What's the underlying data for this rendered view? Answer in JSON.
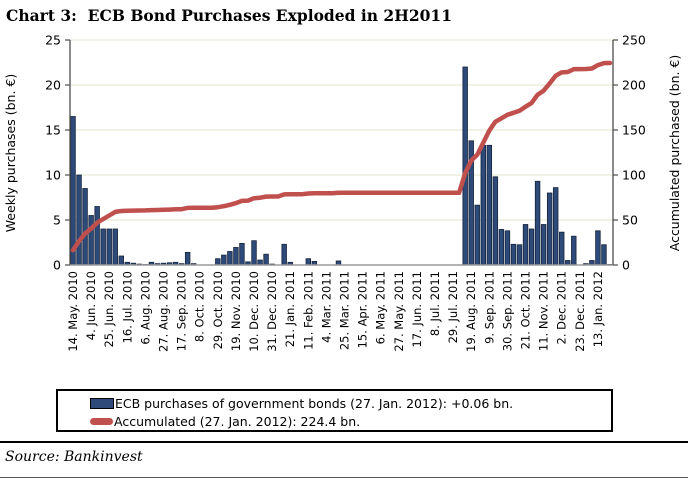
{
  "title": "Chart 3:  ECB Bond Purchases Exploded in 2H2011",
  "source_note": "Source: Bankinvest",
  "legend": {
    "bars_label": "ECB purchases of government bonds (27. Jan. 2012): +0.06 bn.",
    "line_label": "Accumulated (27. Jan. 2012): 224.4 bn."
  },
  "left_axis": {
    "title": "Weekly purchases (bn. €)",
    "min": 0,
    "max": 25,
    "ticks": [
      0,
      5,
      10,
      15,
      20,
      25
    ]
  },
  "right_axis": {
    "title": "Accumulated purchased (bn. €)",
    "min": 0,
    "max": 250,
    "ticks": [
      0,
      50,
      100,
      150,
      200,
      250
    ]
  },
  "colors": {
    "bar_fill": "#2E4A79",
    "bar_stroke": "#16243D",
    "line": "#C0504D",
    "grid": "#E2E4CB",
    "axis": "#4D4D4D",
    "baseline": "#9A9A9A"
  },
  "chart_data": {
    "type": "bar",
    "combo": "weekly bars on left axis + accumulated line on right axis",
    "grid": true,
    "legend_position": "bottom box",
    "x_unit": "weeks (14. May. 2010 – 27. Jan. 2012), every 3rd week labeled",
    "x_label_step": 3,
    "x_labels": [
      "14. May. 2010",
      "4. Jun. 2010",
      "25. Jun. 2010",
      "16. Jul. 2010",
      "6. Aug. 2010",
      "27. Aug. 2010",
      "17. Sep. 2010",
      "8. Oct. 2010",
      "29. Oct. 2010",
      "19. Nov. 2010",
      "10. Dec. 2010",
      "31. Dec. 2010",
      "21. Jan. 2011",
      "11. Feb. 2011",
      "4. Mar. 2011",
      "25. Mar. 2011",
      "15. Apr. 2011",
      "6. May. 2011",
      "27. May. 2011",
      "17. Jun. 2011",
      "8. Jul. 2011",
      "29. Jul. 2011",
      "19. Aug. 2011",
      "9. Sep. 2011",
      "30. Sep. 2011",
      "21. Oct. 2011",
      "11. Nov. 2011",
      "2. Dec. 2011",
      "23. Dec. 2011",
      "13. Jan. 2012"
    ],
    "series": [
      {
        "name": "ECB purchases of government bonds (27. Jan. 2012): +0.06 bn.",
        "type": "bar",
        "axis": "left",
        "ylim": [
          0,
          25
        ],
        "values": [
          16.5,
          10.0,
          8.5,
          5.5,
          6.5,
          4.0,
          4.0,
          4.0,
          1.0,
          0.3,
          0.2,
          0.1,
          0.05,
          0.3,
          0.15,
          0.2,
          0.25,
          0.3,
          0.15,
          1.4,
          0.15,
          0,
          0,
          0,
          0.7,
          1.1,
          1.5,
          1.95,
          2.4,
          0.35,
          2.7,
          0.55,
          1.2,
          0.1,
          0,
          2.3,
          0.3,
          0,
          0,
          0.7,
          0.4,
          0,
          0,
          0,
          0.45,
          0,
          0,
          0,
          0,
          0,
          0,
          0,
          0,
          0,
          0,
          0,
          0,
          0,
          0,
          0,
          0,
          0,
          0,
          0,
          0,
          22.0,
          13.8,
          6.65,
          13.3,
          13.3,
          9.8,
          3.95,
          3.8,
          2.3,
          2.25,
          4.5,
          4.0,
          9.3,
          4.5,
          8.0,
          8.6,
          3.65,
          0.5,
          3.2,
          0,
          0.15,
          0.5,
          3.8,
          2.25,
          0.06
        ]
      },
      {
        "name": "Accumulated (27. Jan. 2012): 224.4 bn.",
        "type": "line",
        "axis": "right",
        "ylim": [
          0,
          250
        ],
        "values": [
          16.5,
          26.5,
          35.0,
          40.5,
          47.0,
          51.0,
          55.0,
          59.0,
          60.0,
          60.3,
          60.5,
          60.6,
          60.65,
          60.95,
          61.1,
          61.3,
          61.55,
          61.85,
          62.0,
          63.4,
          63.55,
          63.55,
          63.55,
          63.55,
          64.25,
          65.35,
          66.85,
          68.8,
          71.2,
          71.55,
          74.25,
          74.8,
          76.0,
          76.1,
          76.1,
          78.4,
          78.7,
          78.7,
          78.7,
          79.4,
          79.8,
          79.8,
          79.8,
          79.8,
          80.25,
          80.25,
          80.25,
          80.25,
          80.25,
          80.25,
          80.25,
          80.25,
          80.25,
          80.25,
          80.25,
          80.25,
          80.25,
          80.25,
          80.25,
          80.25,
          80.25,
          80.25,
          80.25,
          80.25,
          80.25,
          102.25,
          116.05,
          122.7,
          136.0,
          149.3,
          159.1,
          163.05,
          166.85,
          169.15,
          171.4,
          175.9,
          179.9,
          189.2,
          193.7,
          201.7,
          210.3,
          213.95,
          214.45,
          217.65,
          217.65,
          217.8,
          218.3,
          222.1,
          224.35,
          224.4
        ]
      }
    ]
  }
}
